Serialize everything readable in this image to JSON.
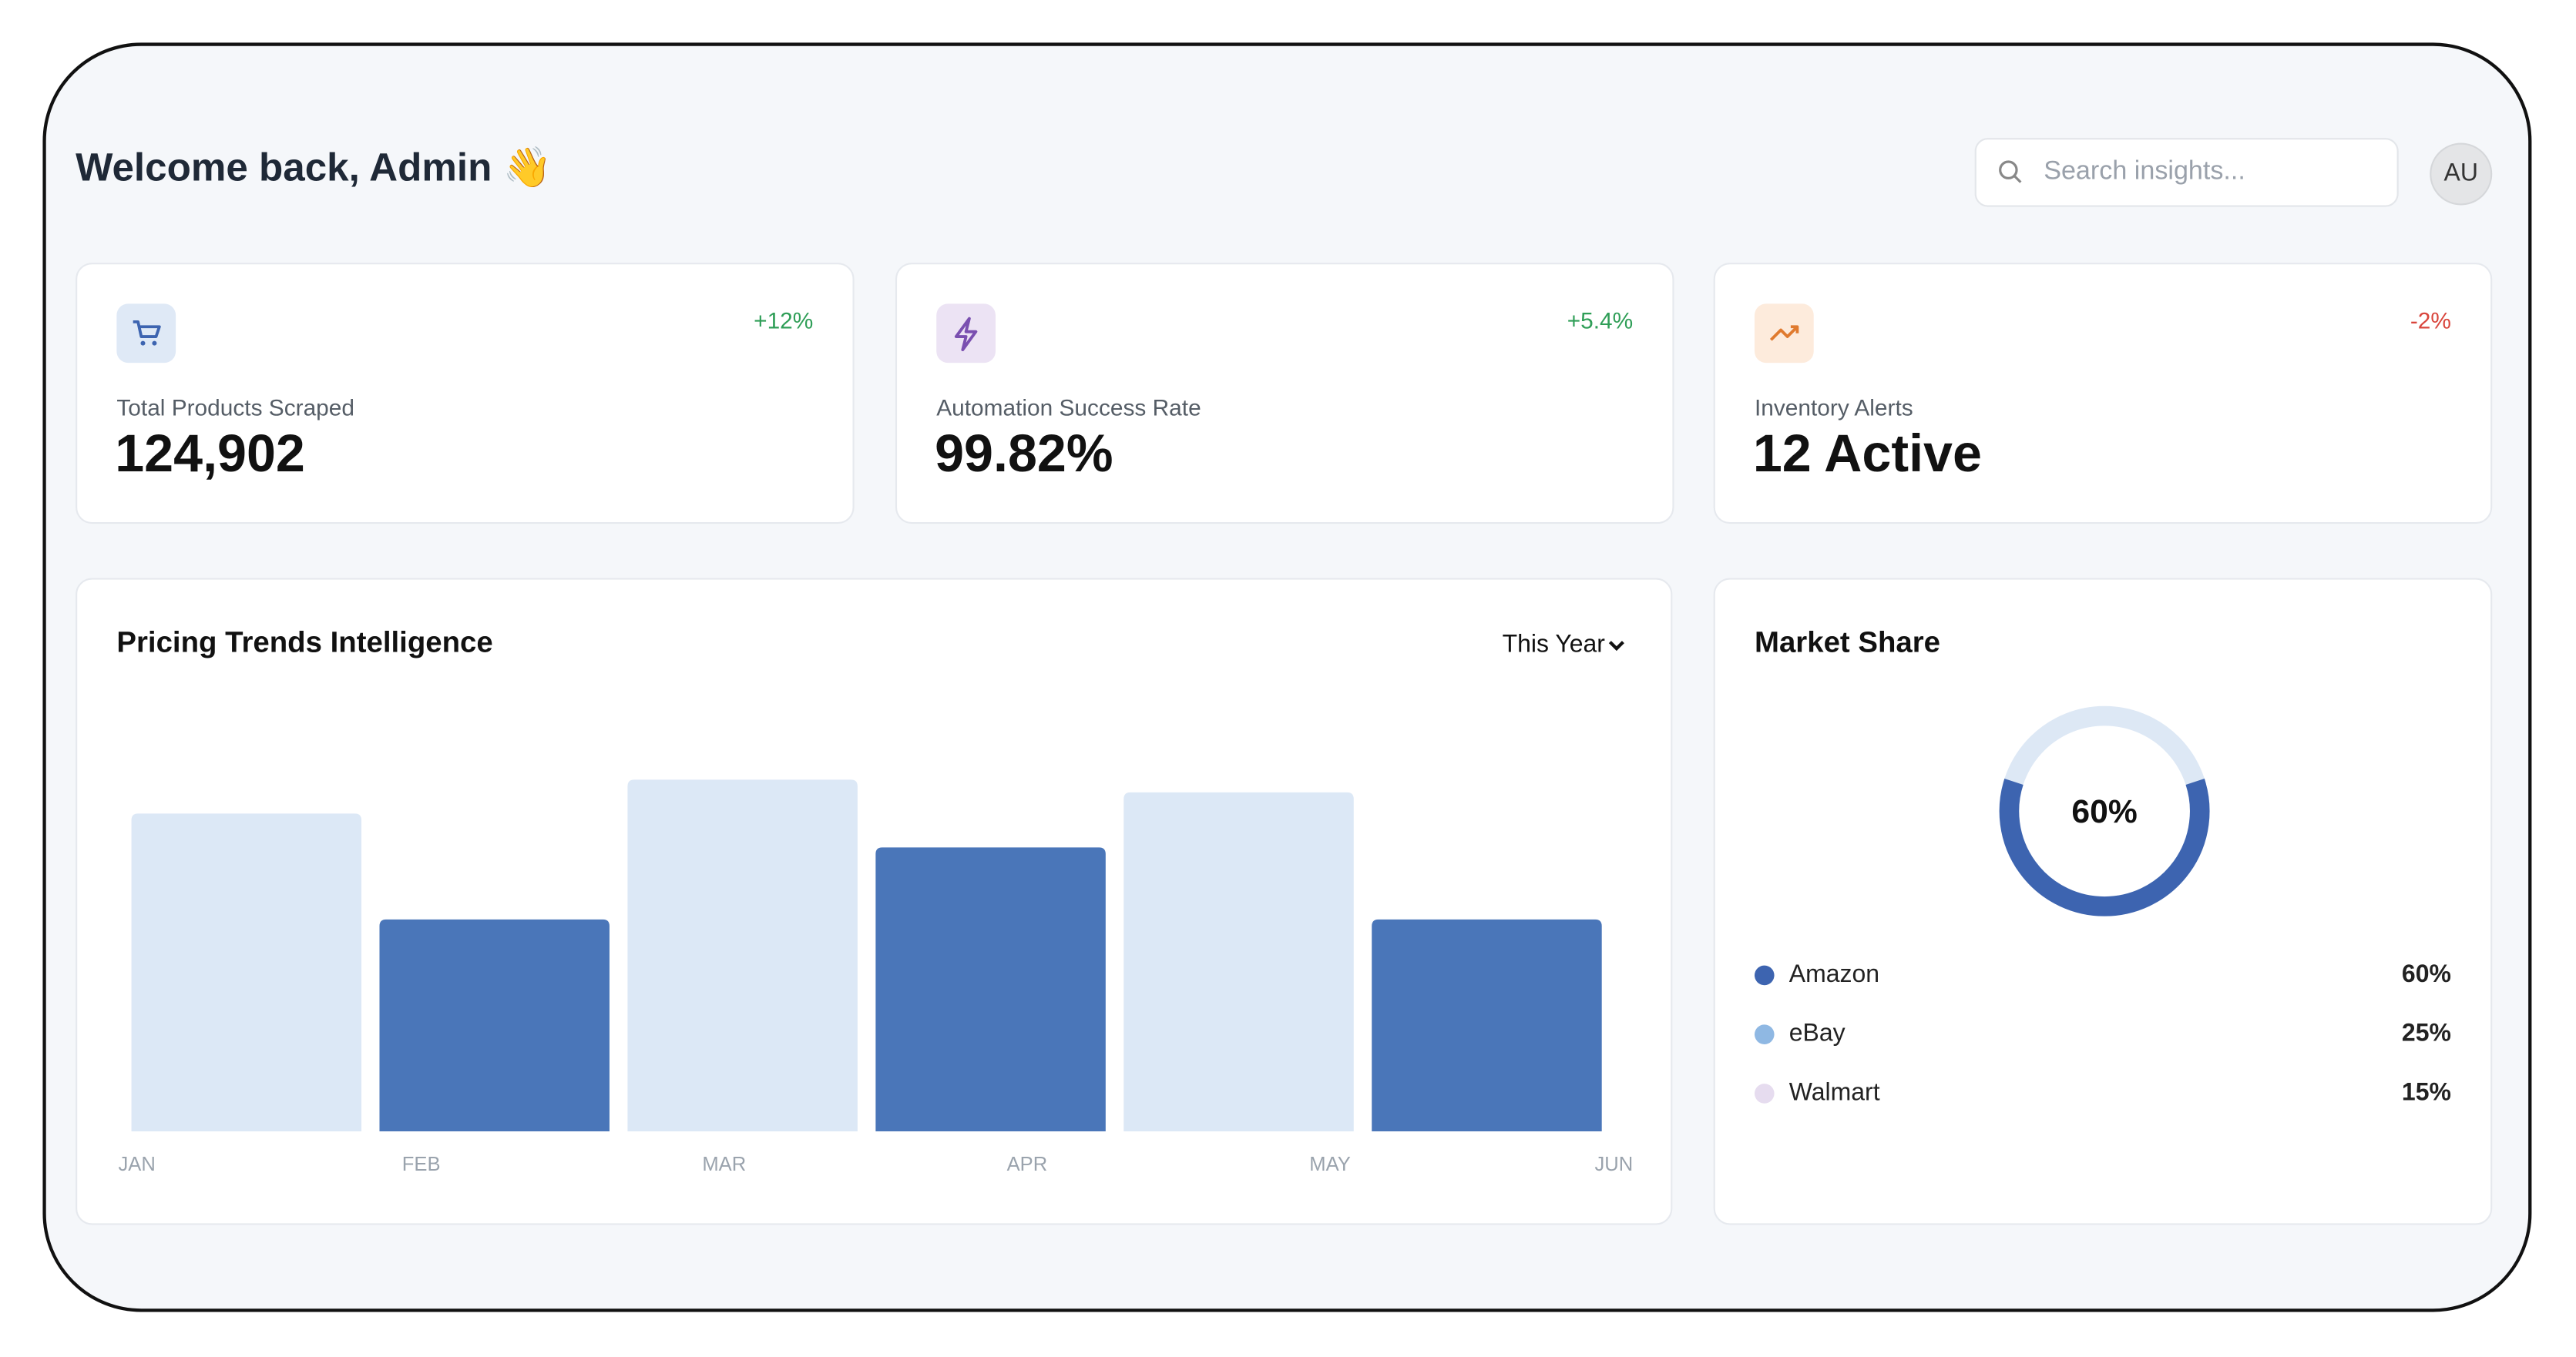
{
  "header": {
    "title": "Welcome back, Admin 👋",
    "search_placeholder": "Search insights...",
    "avatar": "AU"
  },
  "stats": [
    {
      "label": "Total Products Scraped",
      "value": "124,902",
      "change": "+12%"
    },
    {
      "label": "Automation Success Rate",
      "value": "99.82%",
      "change": "+5.4%"
    },
    {
      "label": "Inventory Alerts",
      "value": "12 Active",
      "change": "-2%"
    }
  ],
  "chart_data": [
    {
      "type": "bar",
      "title": "Pricing Trends Intelligence",
      "period": "This Year",
      "categories": [
        "JAN",
        "FEB",
        "MAR",
        "APR",
        "MAY",
        "JUN"
      ],
      "values": [
        75,
        50,
        83,
        67,
        80,
        50
      ],
      "colors": [
        "#dce8f6",
        "#4a76b9",
        "#dce8f6",
        "#4a76b9",
        "#dce8f6",
        "#4a76b9"
      ],
      "ylim": [
        0,
        100
      ]
    },
    {
      "type": "pie",
      "title": "Market Share",
      "categories": [
        "Amazon",
        "eBay",
        "Walmart"
      ],
      "values": [
        60,
        25,
        15
      ],
      "value_labels": [
        "60%",
        "25%",
        "15%"
      ],
      "colors": [
        "#3d64b0",
        "#8fb8e3",
        "#e6dcef"
      ]
    }
  ]
}
